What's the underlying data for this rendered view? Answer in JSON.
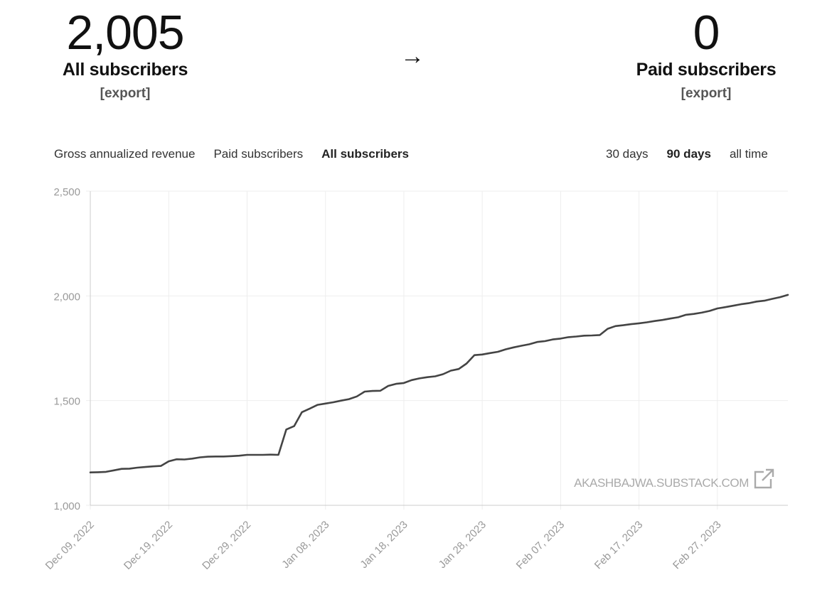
{
  "summary": {
    "all_subscribers": {
      "count": "2,005",
      "label": "All subscribers",
      "export_label": "[export]"
    },
    "arrow": "→",
    "paid_subscribers": {
      "count": "0",
      "label": "Paid subscribers",
      "export_label": "[export]"
    }
  },
  "metric_tabs": [
    {
      "label": "Gross annualized revenue",
      "active": false
    },
    {
      "label": "Paid subscribers",
      "active": false
    },
    {
      "label": "All subscribers",
      "active": true
    }
  ],
  "range_tabs": [
    {
      "label": "30 days",
      "active": false
    },
    {
      "label": "90 days",
      "active": true
    },
    {
      "label": "all time",
      "active": false
    }
  ],
  "watermark": "AKASHBAJWA.SUBSTACK.COM",
  "colors": {
    "line": "#444444",
    "grid": "#eeeeee",
    "axis_text": "#999999"
  },
  "chart_data": {
    "type": "line",
    "title": "All subscribers",
    "xlabel": "",
    "ylabel": "",
    "ylim": [
      1000,
      2500
    ],
    "yticks": [
      1000,
      1500,
      2000,
      2500
    ],
    "ytick_labels": [
      "1,000",
      "1,500",
      "2,000",
      "2,500"
    ],
    "xlim": [
      0,
      89
    ],
    "xticks": [
      0,
      10,
      20,
      30,
      40,
      50,
      60,
      70,
      80
    ],
    "xtick_labels": [
      "Dec 09, 2022",
      "Dec 19, 2022",
      "Dec 29, 2022",
      "Jan 08, 2023",
      "Jan 18, 2023",
      "Jan 28, 2023",
      "Feb 07, 2023",
      "Feb 17, 2023",
      "Feb 27, 2023"
    ],
    "series": [
      {
        "name": "All subscribers",
        "x": [
          0,
          1,
          2,
          3,
          4,
          5,
          6,
          7,
          8,
          9,
          10,
          11,
          12,
          13,
          14,
          15,
          16,
          17,
          18,
          19,
          20,
          21,
          22,
          23,
          24,
          25,
          26,
          27,
          28,
          29,
          30,
          31,
          32,
          33,
          34,
          35,
          36,
          37,
          38,
          39,
          40,
          41,
          42,
          43,
          44,
          45,
          46,
          47,
          48,
          49,
          50,
          51,
          52,
          53,
          54,
          55,
          56,
          57,
          58,
          59,
          60,
          61,
          62,
          63,
          64,
          65,
          66,
          67,
          68,
          69,
          70,
          71,
          72,
          73,
          74,
          75,
          76,
          77,
          78,
          79,
          80,
          81,
          82,
          83,
          84,
          85,
          86,
          87,
          88,
          89
        ],
        "values": [
          1157,
          1158,
          1160,
          1167,
          1174,
          1175,
          1180,
          1183,
          1186,
          1188,
          1210,
          1220,
          1219,
          1223,
          1229,
          1232,
          1233,
          1233,
          1235,
          1237,
          1241,
          1241,
          1241,
          1242,
          1241,
          1362,
          1378,
          1445,
          1462,
          1480,
          1486,
          1492,
          1500,
          1507,
          1520,
          1543,
          1546,
          1547,
          1570,
          1580,
          1584,
          1598,
          1606,
          1612,
          1616,
          1626,
          1643,
          1651,
          1677,
          1717,
          1720,
          1727,
          1733,
          1745,
          1754,
          1762,
          1769,
          1780,
          1784,
          1792,
          1796,
          1803,
          1806,
          1810,
          1811,
          1813,
          1843,
          1856,
          1860,
          1865,
          1869,
          1874,
          1880,
          1885,
          1892,
          1898,
          1910,
          1914,
          1920,
          1928,
          1940,
          1946,
          1953,
          1960,
          1965,
          1973,
          1977,
          1986,
          1994,
          2005
        ]
      }
    ]
  }
}
